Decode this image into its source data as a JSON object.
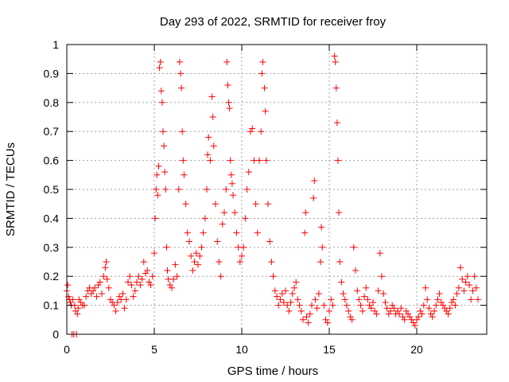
{
  "chart_data": {
    "type": "scatter",
    "title": "Day 293 of 2022, SRMTID for receiver froy",
    "xlabel": "GPS time / hours",
    "ylabel": "SRMTID / TECUs",
    "xlim": [
      0,
      24
    ],
    "ylim": [
      0,
      1
    ],
    "x_ticks": [
      0,
      5,
      10,
      15,
      20
    ],
    "y_ticks": [
      0,
      0.1,
      0.2,
      0.3,
      0.4,
      0.5,
      0.6,
      0.7,
      0.8,
      0.9,
      1
    ],
    "x_tick_labels": [
      "0",
      "5",
      "10",
      "15",
      "20"
    ],
    "y_tick_labels": [
      "0",
      "0.1",
      "0.2",
      "0.3",
      "0.4",
      "0.5",
      "0.6",
      "0.7",
      "0.8",
      "0.9",
      "1"
    ],
    "grid": true,
    "marker": "+",
    "marker_color": "#ff0000",
    "series": [
      {
        "name": "SRMTID",
        "points": [
          [
            0.0,
            0.15
          ],
          [
            0.05,
            0.17
          ],
          [
            0.1,
            0.13
          ],
          [
            0.15,
            0.12
          ],
          [
            0.2,
            0.11
          ],
          [
            0.25,
            0.1
          ],
          [
            0.3,
            0.0
          ],
          [
            0.35,
            0.12
          ],
          [
            0.4,
            0.0
          ],
          [
            0.45,
            0.1
          ],
          [
            0.5,
            0.08
          ],
          [
            0.55,
            0.0
          ],
          [
            0.6,
            0.07
          ],
          [
            0.65,
            0.09
          ],
          [
            0.7,
            0.12
          ],
          [
            0.8,
            0.11
          ],
          [
            0.9,
            0.1
          ],
          [
            1.0,
            0.1
          ],
          [
            1.1,
            0.13
          ],
          [
            1.2,
            0.15
          ],
          [
            1.3,
            0.16
          ],
          [
            1.4,
            0.14
          ],
          [
            1.5,
            0.15
          ],
          [
            1.6,
            0.16
          ],
          [
            1.7,
            0.13
          ],
          [
            1.8,
            0.17
          ],
          [
            1.9,
            0.18
          ],
          [
            2.0,
            0.14
          ],
          [
            2.1,
            0.2
          ],
          [
            2.2,
            0.23
          ],
          [
            2.25,
            0.25
          ],
          [
            2.3,
            0.19
          ],
          [
            2.4,
            0.16
          ],
          [
            2.5,
            0.12
          ],
          [
            2.6,
            0.11
          ],
          [
            2.7,
            0.1
          ],
          [
            2.8,
            0.08
          ],
          [
            2.9,
            0.11
          ],
          [
            3.0,
            0.13
          ],
          [
            3.1,
            0.12
          ],
          [
            3.2,
            0.14
          ],
          [
            3.3,
            0.09
          ],
          [
            3.4,
            0.12
          ],
          [
            3.5,
            0.18
          ],
          [
            3.6,
            0.2
          ],
          [
            3.7,
            0.17
          ],
          [
            3.8,
            0.13
          ],
          [
            3.9,
            0.15
          ],
          [
            4.0,
            0.18
          ],
          [
            4.1,
            0.2
          ],
          [
            4.2,
            0.17
          ],
          [
            4.3,
            0.19
          ],
          [
            4.4,
            0.25
          ],
          [
            4.5,
            0.21
          ],
          [
            4.6,
            0.22
          ],
          [
            4.7,
            0.18
          ],
          [
            4.8,
            0.17
          ],
          [
            4.9,
            0.2
          ],
          [
            5.0,
            0.28
          ],
          [
            5.05,
            0.4
          ],
          [
            5.1,
            0.5
          ],
          [
            5.15,
            0.55
          ],
          [
            5.2,
            0.48
          ],
          [
            5.25,
            0.58
          ],
          [
            5.3,
            0.92
          ],
          [
            5.35,
            0.94
          ],
          [
            5.4,
            0.84
          ],
          [
            5.45,
            0.8
          ],
          [
            5.5,
            0.7
          ],
          [
            5.55,
            0.65
          ],
          [
            5.6,
            0.56
          ],
          [
            5.65,
            0.5
          ],
          [
            5.7,
            0.3
          ],
          [
            5.75,
            0.22
          ],
          [
            5.8,
            0.19
          ],
          [
            5.9,
            0.17
          ],
          [
            6.0,
            0.16
          ],
          [
            6.1,
            0.19
          ],
          [
            6.2,
            0.24
          ],
          [
            6.3,
            0.2
          ],
          [
            6.4,
            0.5
          ],
          [
            6.45,
            0.94
          ],
          [
            6.5,
            0.9
          ],
          [
            6.55,
            0.85
          ],
          [
            6.6,
            0.7
          ],
          [
            6.65,
            0.6
          ],
          [
            6.7,
            0.55
          ],
          [
            6.8,
            0.45
          ],
          [
            6.9,
            0.35
          ],
          [
            7.0,
            0.32
          ],
          [
            7.1,
            0.27
          ],
          [
            7.2,
            0.22
          ],
          [
            7.3,
            0.25
          ],
          [
            7.4,
            0.28
          ],
          [
            7.5,
            0.24
          ],
          [
            7.6,
            0.27
          ],
          [
            7.7,
            0.3
          ],
          [
            7.8,
            0.35
          ],
          [
            7.9,
            0.4
          ],
          [
            8.0,
            0.5
          ],
          [
            8.05,
            0.62
          ],
          [
            8.1,
            0.68
          ],
          [
            8.2,
            0.6
          ],
          [
            8.3,
            0.82
          ],
          [
            8.35,
            0.75
          ],
          [
            8.4,
            0.65
          ],
          [
            8.5,
            0.45
          ],
          [
            8.6,
            0.32
          ],
          [
            8.7,
            0.25
          ],
          [
            8.8,
            0.2
          ],
          [
            8.9,
            0.38
          ],
          [
            9.0,
            0.42
          ],
          [
            9.1,
            0.5
          ],
          [
            9.15,
            0.94
          ],
          [
            9.2,
            0.86
          ],
          [
            9.25,
            0.8
          ],
          [
            9.3,
            0.78
          ],
          [
            9.35,
            0.6
          ],
          [
            9.4,
            0.55
          ],
          [
            9.45,
            0.52
          ],
          [
            9.5,
            0.48
          ],
          [
            9.6,
            0.42
          ],
          [
            9.7,
            0.35
          ],
          [
            9.8,
            0.3
          ],
          [
            9.9,
            0.25
          ],
          [
            10.0,
            0.27
          ],
          [
            10.1,
            0.3
          ],
          [
            10.2,
            0.4
          ],
          [
            10.3,
            0.5
          ],
          [
            10.4,
            0.56
          ],
          [
            10.5,
            0.7
          ],
          [
            10.6,
            0.71
          ],
          [
            10.7,
            0.6
          ],
          [
            10.8,
            0.45
          ],
          [
            10.9,
            0.35
          ],
          [
            11.0,
            0.6
          ],
          [
            11.1,
            0.7
          ],
          [
            11.15,
            0.9
          ],
          [
            11.2,
            0.94
          ],
          [
            11.3,
            0.85
          ],
          [
            11.35,
            0.77
          ],
          [
            11.4,
            0.6
          ],
          [
            11.5,
            0.45
          ],
          [
            11.6,
            0.32
          ],
          [
            11.7,
            0.25
          ],
          [
            11.8,
            0.2
          ],
          [
            11.9,
            0.15
          ],
          [
            12.0,
            0.13
          ],
          [
            12.1,
            0.1
          ],
          [
            12.2,
            0.12
          ],
          [
            12.3,
            0.14
          ],
          [
            12.4,
            0.11
          ],
          [
            12.5,
            0.15
          ],
          [
            12.6,
            0.1
          ],
          [
            12.7,
            0.08
          ],
          [
            12.8,
            0.11
          ],
          [
            12.9,
            0.14
          ],
          [
            13.0,
            0.16
          ],
          [
            13.1,
            0.18
          ],
          [
            13.2,
            0.12
          ],
          [
            13.3,
            0.1
          ],
          [
            13.4,
            0.08
          ],
          [
            13.5,
            0.05
          ],
          [
            13.6,
            0.35
          ],
          [
            13.65,
            0.42
          ],
          [
            13.7,
            0.06
          ],
          [
            13.8,
            0.04
          ],
          [
            13.9,
            0.07
          ],
          [
            14.0,
            0.1
          ],
          [
            14.1,
            0.47
          ],
          [
            14.15,
            0.53
          ],
          [
            14.2,
            0.12
          ],
          [
            14.3,
            0.09
          ],
          [
            14.4,
            0.14
          ],
          [
            14.5,
            0.25
          ],
          [
            14.55,
            0.37
          ],
          [
            14.6,
            0.3
          ],
          [
            14.7,
            0.1
          ],
          [
            14.8,
            0.05
          ],
          [
            14.9,
            0.04
          ],
          [
            15.0,
            0.08
          ],
          [
            15.1,
            0.12
          ],
          [
            15.2,
            0.1
          ],
          [
            15.3,
            0.96
          ],
          [
            15.35,
            0.94
          ],
          [
            15.4,
            0.85
          ],
          [
            15.45,
            0.73
          ],
          [
            15.5,
            0.6
          ],
          [
            15.55,
            0.42
          ],
          [
            15.6,
            0.25
          ],
          [
            15.7,
            0.18
          ],
          [
            15.8,
            0.14
          ],
          [
            15.9,
            0.12
          ],
          [
            16.0,
            0.1
          ],
          [
            16.1,
            0.08
          ],
          [
            16.2,
            0.06
          ],
          [
            16.3,
            0.05
          ],
          [
            16.4,
            0.3
          ],
          [
            16.5,
            0.22
          ],
          [
            16.6,
            0.15
          ],
          [
            16.7,
            0.12
          ],
          [
            16.8,
            0.1
          ],
          [
            16.9,
            0.08
          ],
          [
            17.0,
            0.13
          ],
          [
            17.1,
            0.16
          ],
          [
            17.2,
            0.12
          ],
          [
            17.3,
            0.1
          ],
          [
            17.4,
            0.09
          ],
          [
            17.5,
            0.11
          ],
          [
            17.6,
            0.08
          ],
          [
            17.7,
            0.07
          ],
          [
            17.8,
            0.15
          ],
          [
            17.9,
            0.28
          ],
          [
            18.0,
            0.2
          ],
          [
            18.1,
            0.14
          ],
          [
            18.2,
            0.11
          ],
          [
            18.3,
            0.09
          ],
          [
            18.4,
            0.07
          ],
          [
            18.5,
            0.08
          ],
          [
            18.6,
            0.1
          ],
          [
            18.7,
            0.09
          ],
          [
            18.8,
            0.07
          ],
          [
            18.9,
            0.08
          ],
          [
            19.0,
            0.07
          ],
          [
            19.1,
            0.09
          ],
          [
            19.2,
            0.06
          ],
          [
            19.3,
            0.05
          ],
          [
            19.4,
            0.08
          ],
          [
            19.5,
            0.07
          ],
          [
            19.6,
            0.06
          ],
          [
            19.7,
            0.05
          ],
          [
            19.8,
            0.04
          ],
          [
            19.9,
            0.03
          ],
          [
            20.0,
            0.05
          ],
          [
            20.1,
            0.06
          ],
          [
            20.2,
            0.08
          ],
          [
            20.3,
            0.07
          ],
          [
            20.4,
            0.1
          ],
          [
            20.5,
            0.16
          ],
          [
            20.6,
            0.12
          ],
          [
            20.7,
            0.09
          ],
          [
            20.8,
            0.07
          ],
          [
            20.9,
            0.06
          ],
          [
            21.0,
            0.08
          ],
          [
            21.1,
            0.1
          ],
          [
            21.2,
            0.12
          ],
          [
            21.3,
            0.14
          ],
          [
            21.4,
            0.11
          ],
          [
            21.5,
            0.1
          ],
          [
            21.6,
            0.09
          ],
          [
            21.7,
            0.08
          ],
          [
            21.8,
            0.07
          ],
          [
            21.9,
            0.09
          ],
          [
            22.0,
            0.11
          ],
          [
            22.1,
            0.12
          ],
          [
            22.2,
            0.1
          ],
          [
            22.3,
            0.14
          ],
          [
            22.4,
            0.16
          ],
          [
            22.5,
            0.23
          ],
          [
            22.6,
            0.19
          ],
          [
            22.7,
            0.15
          ],
          [
            22.8,
            0.18
          ],
          [
            22.9,
            0.2
          ],
          [
            23.0,
            0.17
          ],
          [
            23.1,
            0.12
          ],
          [
            23.2,
            0.15
          ],
          [
            23.3,
            0.2
          ],
          [
            23.4,
            0.16
          ],
          [
            23.5,
            0.12
          ]
        ]
      }
    ]
  }
}
